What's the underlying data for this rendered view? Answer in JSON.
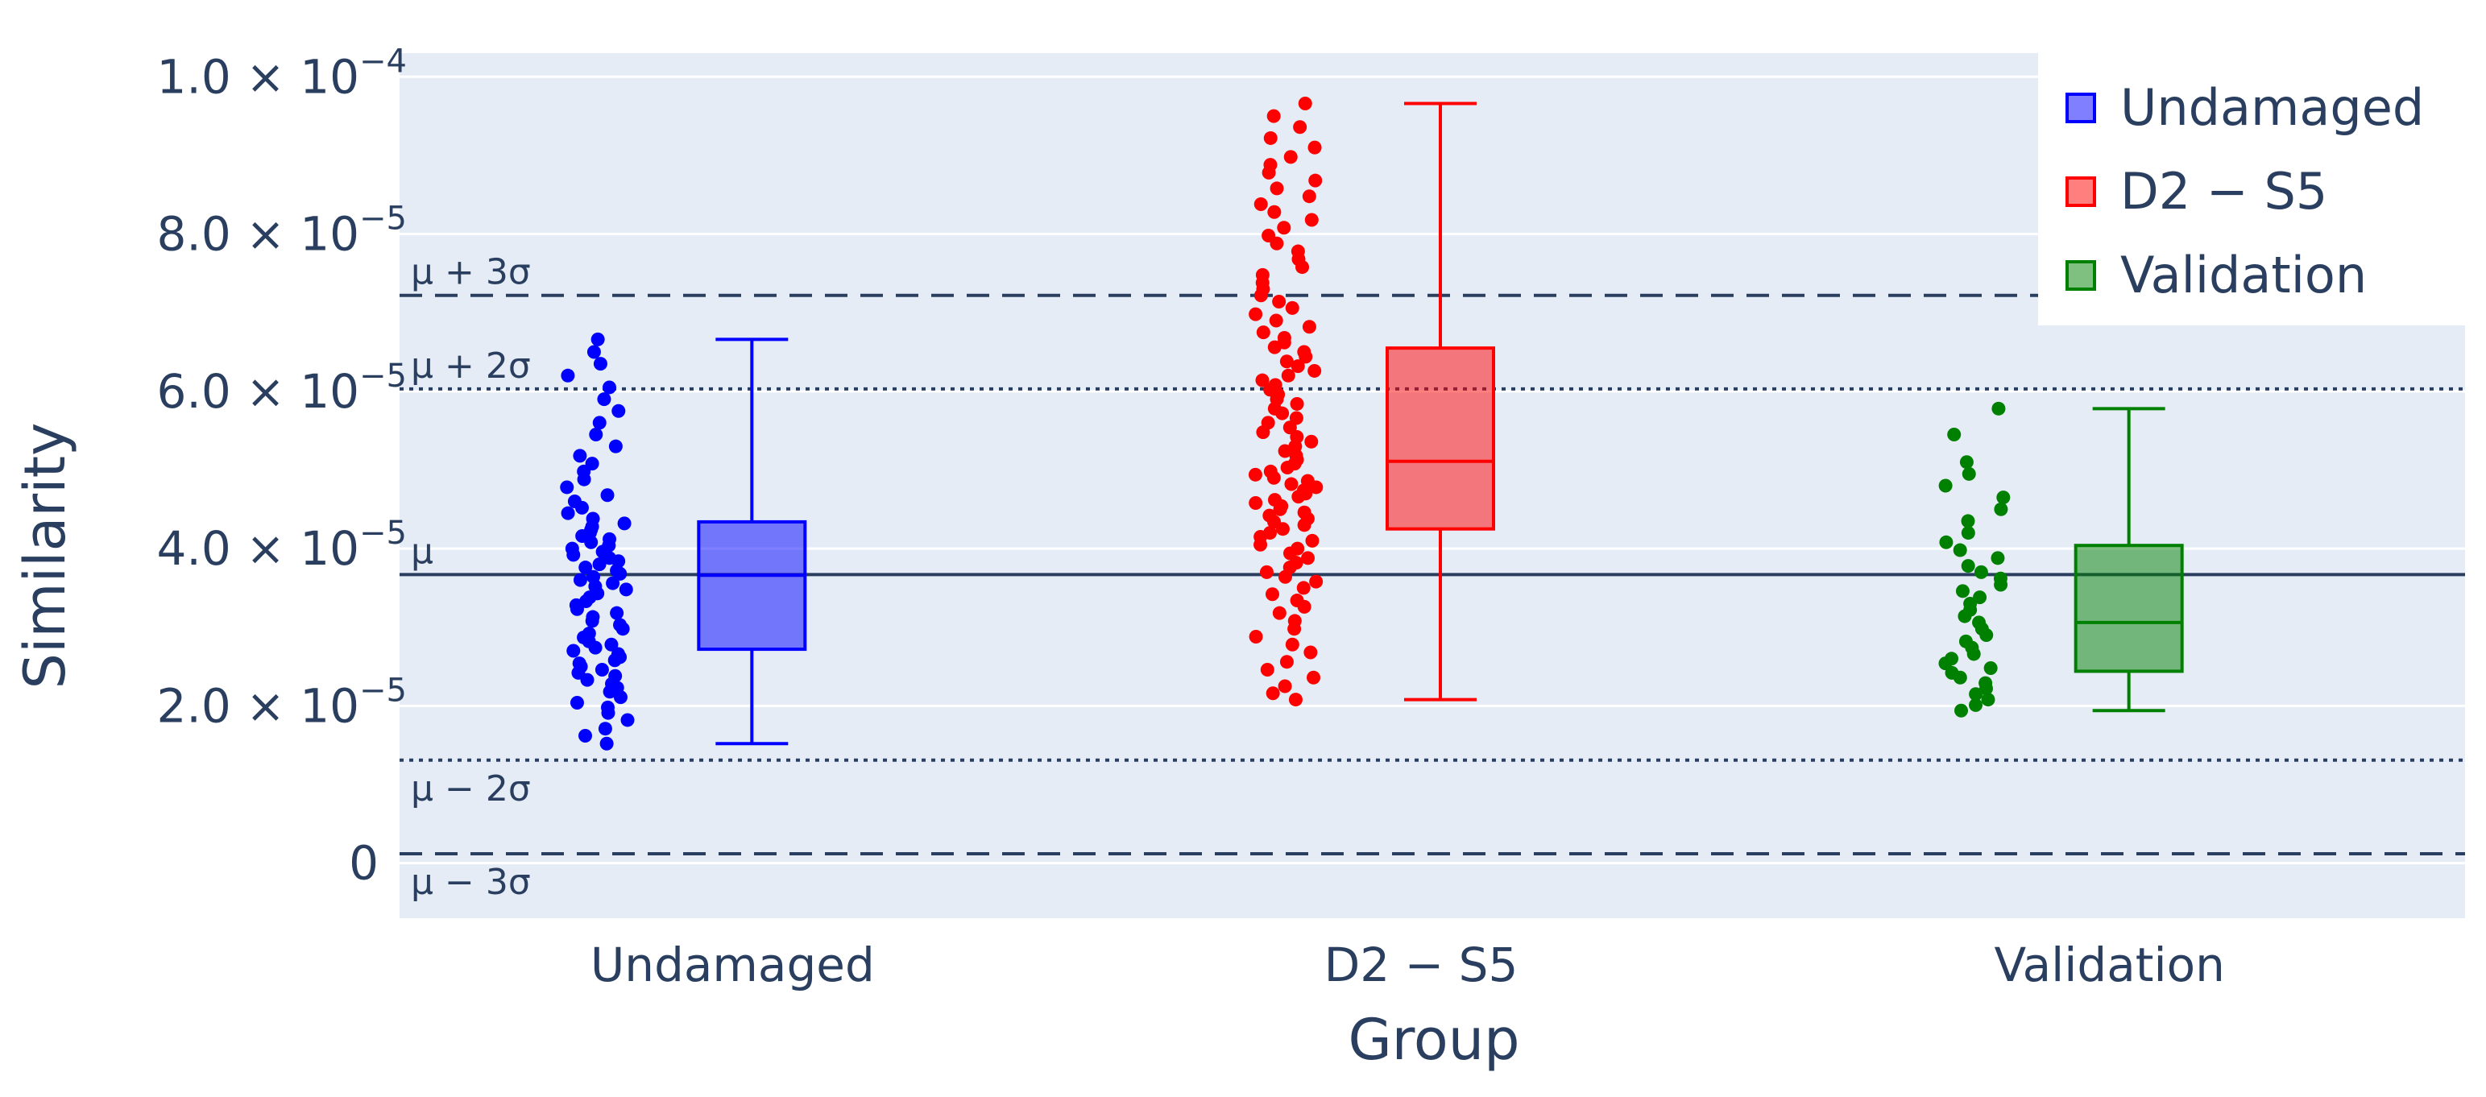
{
  "chart_data": {
    "type": "box",
    "xlabel": "Group",
    "ylabel": "Similarity",
    "categories": [
      "Undamaged",
      "D2 − S5",
      "Validation"
    ],
    "ylim": [
      -7e-06,
      0.000103
    ],
    "y_ticks": [
      {
        "value": 0,
        "label": "0"
      },
      {
        "value": 2e-05,
        "label": "2.0 × 10",
        "exp": "−5"
      },
      {
        "value": 4e-05,
        "label": "4.0 × 10",
        "exp": "−5"
      },
      {
        "value": 6e-05,
        "label": "6.0 × 10",
        "exp": "−5"
      },
      {
        "value": 8e-05,
        "label": "8.0 × 10",
        "exp": "−5"
      },
      {
        "value": 0.0001,
        "label": "1.0 × 10",
        "exp": "−4"
      }
    ],
    "grid": true,
    "legend_position": "top-right",
    "reference_lines": [
      {
        "label": "μ + 3σ",
        "value": 7.22e-05,
        "style": "dashed"
      },
      {
        "label": "μ + 2σ",
        "value": 6.03e-05,
        "style": "dotted"
      },
      {
        "label": "μ",
        "value": 3.67e-05,
        "style": "solid"
      },
      {
        "label": "μ − 2σ",
        "value": 1.31e-05,
        "style": "dotted"
      },
      {
        "label": "μ − 3σ",
        "value": 1.2e-06,
        "style": "dashed"
      }
    ],
    "series": [
      {
        "name": "Undamaged",
        "color": "#0000ff",
        "box": {
          "min": 1.52e-05,
          "q1": 2.72e-05,
          "median": 3.66e-05,
          "q3": 4.34e-05,
          "max": 6.66e-05
        },
        "points": [
          1.52e-05,
          1.62e-05,
          1.71e-05,
          1.82e-05,
          1.91e-05,
          1.98e-05,
          2.04e-05,
          2.11e-05,
          2.18e-05,
          2.23e-05,
          2.28e-05,
          2.33e-05,
          2.38e-05,
          2.42e-05,
          2.46e-05,
          2.5e-05,
          2.54e-05,
          2.58e-05,
          2.62e-05,
          2.66e-05,
          2.7e-05,
          2.74e-05,
          2.78e-05,
          2.82e-05,
          2.87e-05,
          2.92e-05,
          2.98e-05,
          3.03e-05,
          3.08e-05,
          3.13e-05,
          3.18e-05,
          3.23e-05,
          3.28e-05,
          3.33e-05,
          3.38e-05,
          3.43e-05,
          3.48e-05,
          3.52e-05,
          3.56e-05,
          3.6e-05,
          3.64e-05,
          3.68e-05,
          3.72e-05,
          3.76e-05,
          3.8e-05,
          3.84e-05,
          3.88e-05,
          3.92e-05,
          3.96e-05,
          4e-05,
          4.04e-05,
          4.08e-05,
          4.12e-05,
          4.16e-05,
          4.2e-05,
          4.24e-05,
          4.28e-05,
          4.32e-05,
          4.38e-05,
          4.45e-05,
          4.52e-05,
          4.6e-05,
          4.68e-05,
          4.78e-05,
          4.88e-05,
          4.98e-05,
          5.08e-05,
          5.18e-05,
          5.3e-05,
          5.45e-05,
          5.6e-05,
          5.75e-05,
          5.9e-05,
          6.05e-05,
          6.2e-05,
          6.35e-05,
          6.5e-05,
          6.66e-05
        ]
      },
      {
        "name": "D2 − S5",
        "color": "#ff0000",
        "box": {
          "min": 2.08e-05,
          "q1": 4.25e-05,
          "median": 5.11e-05,
          "q3": 6.55e-05,
          "max": 9.66e-05
        },
        "points": [
          2.08e-05,
          2.16e-05,
          2.25e-05,
          2.36e-05,
          2.46e-05,
          2.56e-05,
          2.68e-05,
          2.78e-05,
          2.88e-05,
          2.98e-05,
          3.08e-05,
          3.18e-05,
          3.26e-05,
          3.34e-05,
          3.42e-05,
          3.5e-05,
          3.58e-05,
          3.64e-05,
          3.7e-05,
          3.76e-05,
          3.82e-05,
          3.88e-05,
          3.94e-05,
          4e-05,
          4.05e-05,
          4.1e-05,
          4.15e-05,
          4.2e-05,
          4.25e-05,
          4.3e-05,
          4.34e-05,
          4.38e-05,
          4.42e-05,
          4.46e-05,
          4.5e-05,
          4.54e-05,
          4.58e-05,
          4.62e-05,
          4.66e-05,
          4.7e-05,
          4.74e-05,
          4.78e-05,
          4.82e-05,
          4.86e-05,
          4.9e-05,
          4.94e-05,
          4.98e-05,
          5.03e-05,
          5.08e-05,
          5.13e-05,
          5.18e-05,
          5.24e-05,
          5.3e-05,
          5.36e-05,
          5.42e-05,
          5.48e-05,
          5.54e-05,
          5.6e-05,
          5.66e-05,
          5.72e-05,
          5.78e-05,
          5.84e-05,
          5.9e-05,
          5.96e-05,
          6.02e-05,
          6.08e-05,
          6.14e-05,
          6.2e-05,
          6.26e-05,
          6.32e-05,
          6.38e-05,
          6.44e-05,
          6.5e-05,
          6.56e-05,
          6.62e-05,
          6.68e-05,
          6.75e-05,
          6.82e-05,
          6.9e-05,
          6.98e-05,
          7.06e-05,
          7.14e-05,
          7.22e-05,
          7.3e-05,
          7.38e-05,
          7.48e-05,
          7.58e-05,
          7.68e-05,
          7.78e-05,
          7.88e-05,
          7.98e-05,
          8.08e-05,
          8.18e-05,
          8.28e-05,
          8.38e-05,
          8.48e-05,
          8.58e-05,
          8.68e-05,
          8.78e-05,
          8.88e-05,
          8.98e-05,
          9.1e-05,
          9.22e-05,
          9.36e-05,
          9.5e-05,
          9.66e-05
        ]
      },
      {
        "name": "Validation",
        "color": "#008000",
        "box": {
          "min": 1.94e-05,
          "q1": 2.44e-05,
          "median": 3.06e-05,
          "q3": 4.04e-05,
          "max": 5.78e-05
        },
        "points": [
          1.94e-05,
          2.01e-05,
          2.08e-05,
          2.15e-05,
          2.22e-05,
          2.29e-05,
          2.36e-05,
          2.42e-05,
          2.48e-05,
          2.54e-05,
          2.6e-05,
          2.66e-05,
          2.74e-05,
          2.82e-05,
          2.9e-05,
          2.98e-05,
          3.06e-05,
          3.14e-05,
          3.22e-05,
          3.3e-05,
          3.38e-05,
          3.46e-05,
          3.54e-05,
          3.62e-05,
          3.7e-05,
          3.78e-05,
          3.88e-05,
          3.98e-05,
          4.08e-05,
          4.2e-05,
          4.35e-05,
          4.5e-05,
          4.65e-05,
          4.8e-05,
          4.95e-05,
          5.1e-05,
          5.45e-05,
          5.78e-05
        ]
      }
    ]
  }
}
